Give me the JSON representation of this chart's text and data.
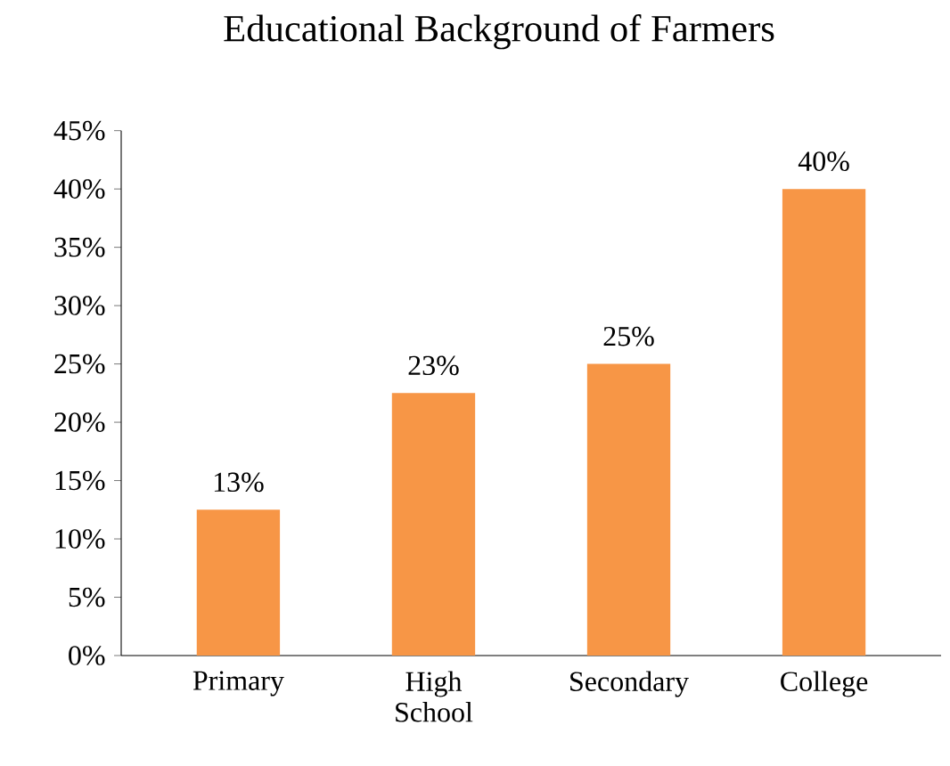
{
  "chart_data": {
    "type": "bar",
    "title": "Educational Background of Farmers",
    "categories": [
      "Primary",
      "High School",
      "Secondary",
      "College"
    ],
    "values": [
      12.5,
      22.5,
      25,
      40
    ],
    "value_labels": [
      "13%",
      "23%",
      "25%",
      "40%"
    ],
    "color": "#f79646",
    "ylim": [
      0,
      45
    ],
    "yticks": [
      {
        "value": 0,
        "label": "0%"
      },
      {
        "value": 5,
        "label": "5%"
      },
      {
        "value": 10,
        "label": "10%"
      },
      {
        "value": 15,
        "label": "15%"
      },
      {
        "value": 20,
        "label": "20%"
      },
      {
        "value": 25,
        "label": "25%"
      },
      {
        "value": 30,
        "label": "30%"
      },
      {
        "value": 35,
        "label": "35%"
      },
      {
        "value": 40,
        "label": "40%"
      },
      {
        "value": 45,
        "label": "45%"
      }
    ],
    "grid": false
  }
}
